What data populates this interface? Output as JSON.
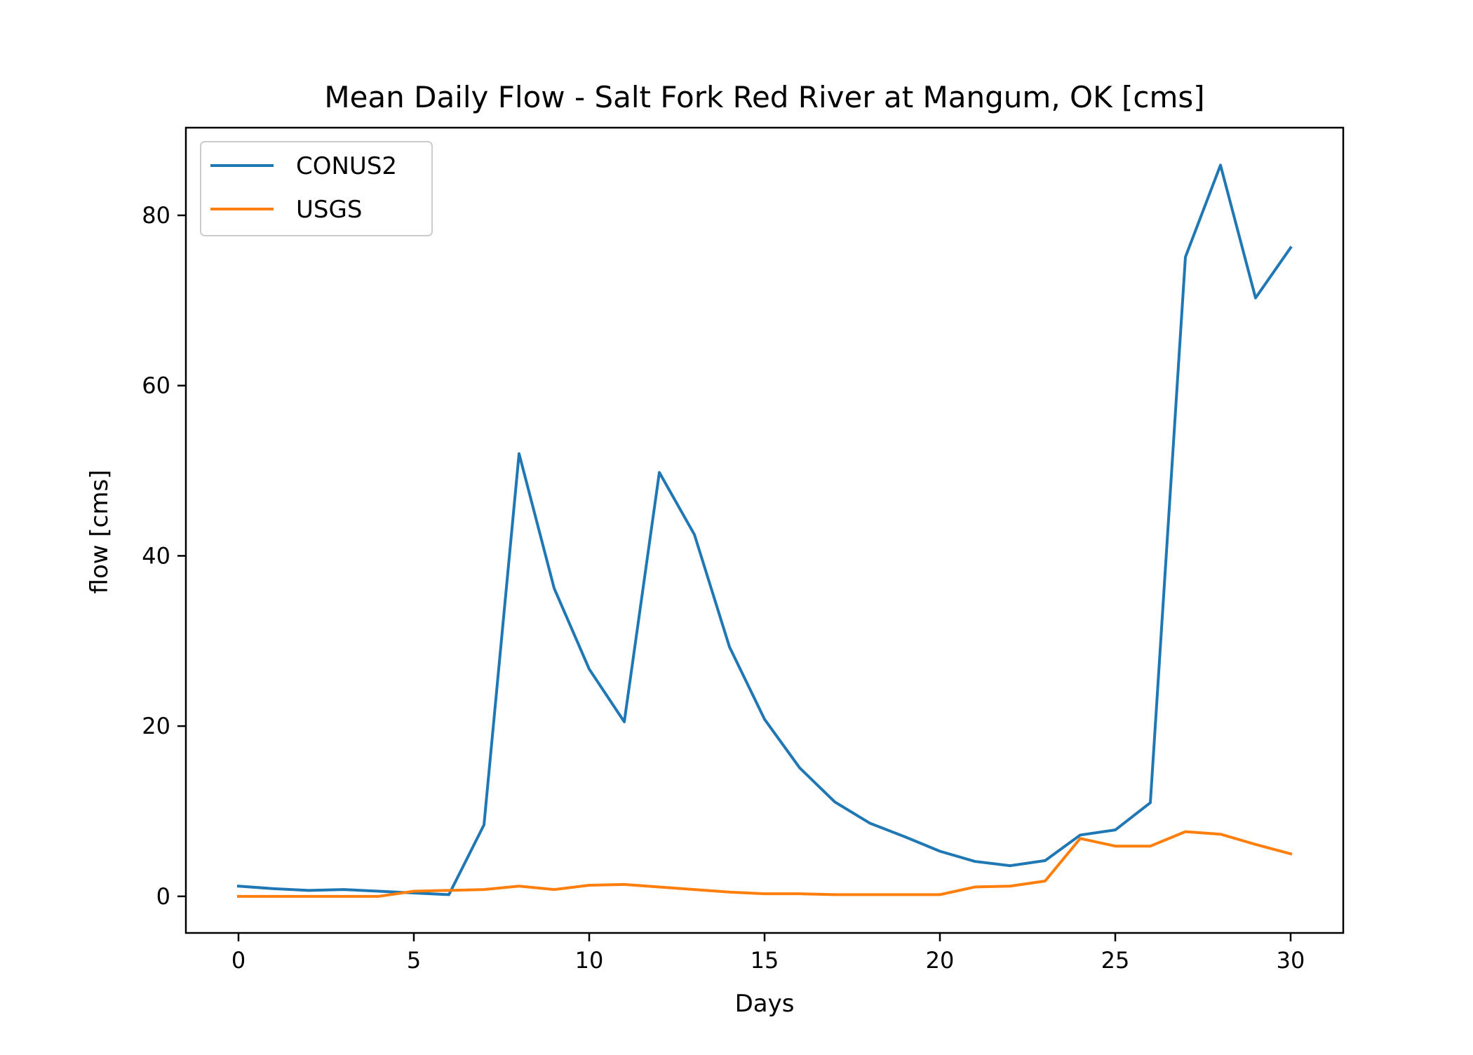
{
  "chart_data": {
    "type": "line",
    "title": "Mean Daily Flow - Salt Fork Red River at Mangum, OK [cms]",
    "xlabel": "Days",
    "ylabel": "flow [cms]",
    "xlim": [
      -1.5,
      31.5
    ],
    "ylim": [
      -4.3,
      90.3
    ],
    "xticks": [
      0,
      5,
      10,
      15,
      20,
      25,
      30
    ],
    "yticks": [
      0,
      20,
      40,
      60,
      80
    ],
    "grid": false,
    "legend_position": "top-left",
    "x": [
      0,
      1,
      2,
      3,
      4,
      5,
      6,
      7,
      8,
      9,
      10,
      11,
      12,
      13,
      14,
      15,
      16,
      17,
      18,
      19,
      20,
      21,
      22,
      23,
      24,
      25,
      26,
      27,
      28,
      29,
      30
    ],
    "series": [
      {
        "name": "CONUS2",
        "color": "#1f77b4",
        "values": [
          1.2,
          0.9,
          0.7,
          0.8,
          0.6,
          0.4,
          0.2,
          8.4,
          52.0,
          36.2,
          26.7,
          20.5,
          49.8,
          42.5,
          29.3,
          20.8,
          15.1,
          11.1,
          8.6,
          7.0,
          5.3,
          4.1,
          3.6,
          4.2,
          7.2,
          7.8,
          11.0,
          75.1,
          85.9,
          70.3,
          76.2
        ]
      },
      {
        "name": "USGS",
        "color": "#ff7f0e",
        "values": [
          0.0,
          0.0,
          0.0,
          0.0,
          0.0,
          0.6,
          0.7,
          0.8,
          1.2,
          0.8,
          1.3,
          1.4,
          1.1,
          0.8,
          0.5,
          0.3,
          0.3,
          0.2,
          0.2,
          0.2,
          0.2,
          1.1,
          1.2,
          1.8,
          6.8,
          5.9,
          5.9,
          7.6,
          7.3,
          6.1,
          5.0
        ]
      }
    ]
  }
}
